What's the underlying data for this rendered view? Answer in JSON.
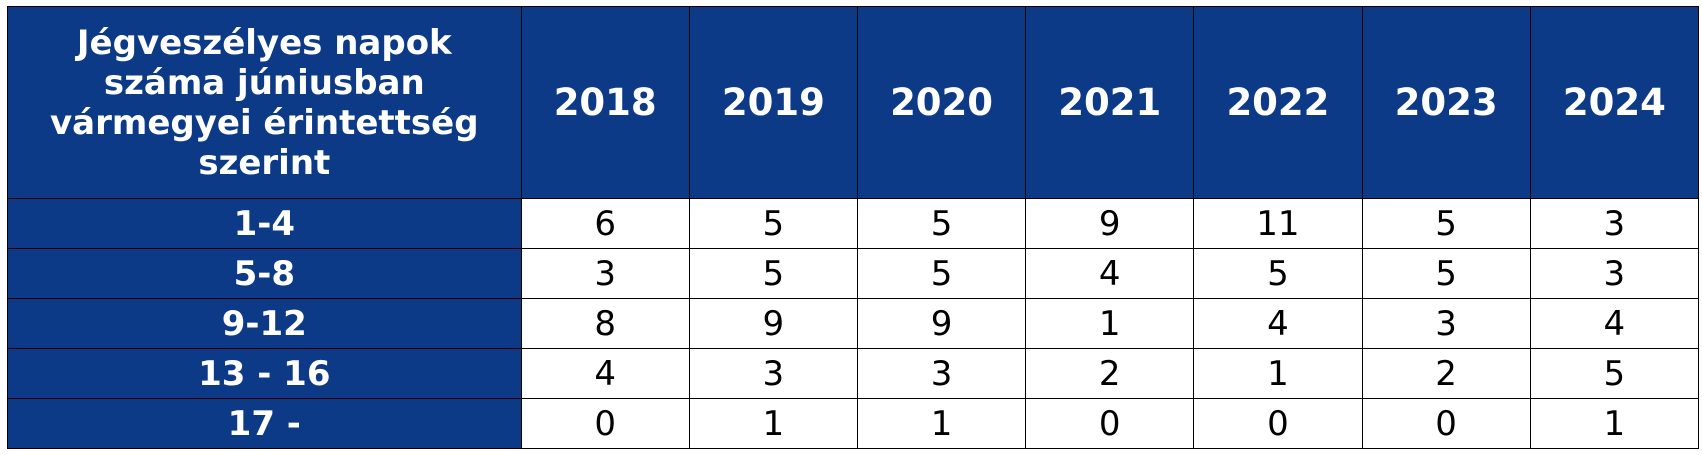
{
  "colors": {
    "header_bg": "#0c3a87",
    "header_text": "#ffffff",
    "cell_bg": "#ffffff",
    "cell_text": "#000000",
    "grid": "#000000"
  },
  "chart_data": {
    "type": "table",
    "corner_label": "Jégveszélyes napok száma júniusban vármegyei érintettség szerint",
    "columns": [
      "2018",
      "2019",
      "2020",
      "2021",
      "2022",
      "2023",
      "2024"
    ],
    "rows": [
      {
        "label": "1-4",
        "values": [
          6,
          5,
          5,
          9,
          11,
          5,
          3
        ]
      },
      {
        "label": "5-8",
        "values": [
          3,
          5,
          5,
          4,
          5,
          5,
          3
        ]
      },
      {
        "label": "9-12",
        "values": [
          8,
          9,
          9,
          1,
          4,
          3,
          4
        ]
      },
      {
        "label": "13 - 16",
        "values": [
          4,
          3,
          3,
          2,
          1,
          2,
          5
        ]
      },
      {
        "label": "17 -",
        "values": [
          0,
          1,
          1,
          0,
          0,
          0,
          1
        ]
      }
    ]
  }
}
